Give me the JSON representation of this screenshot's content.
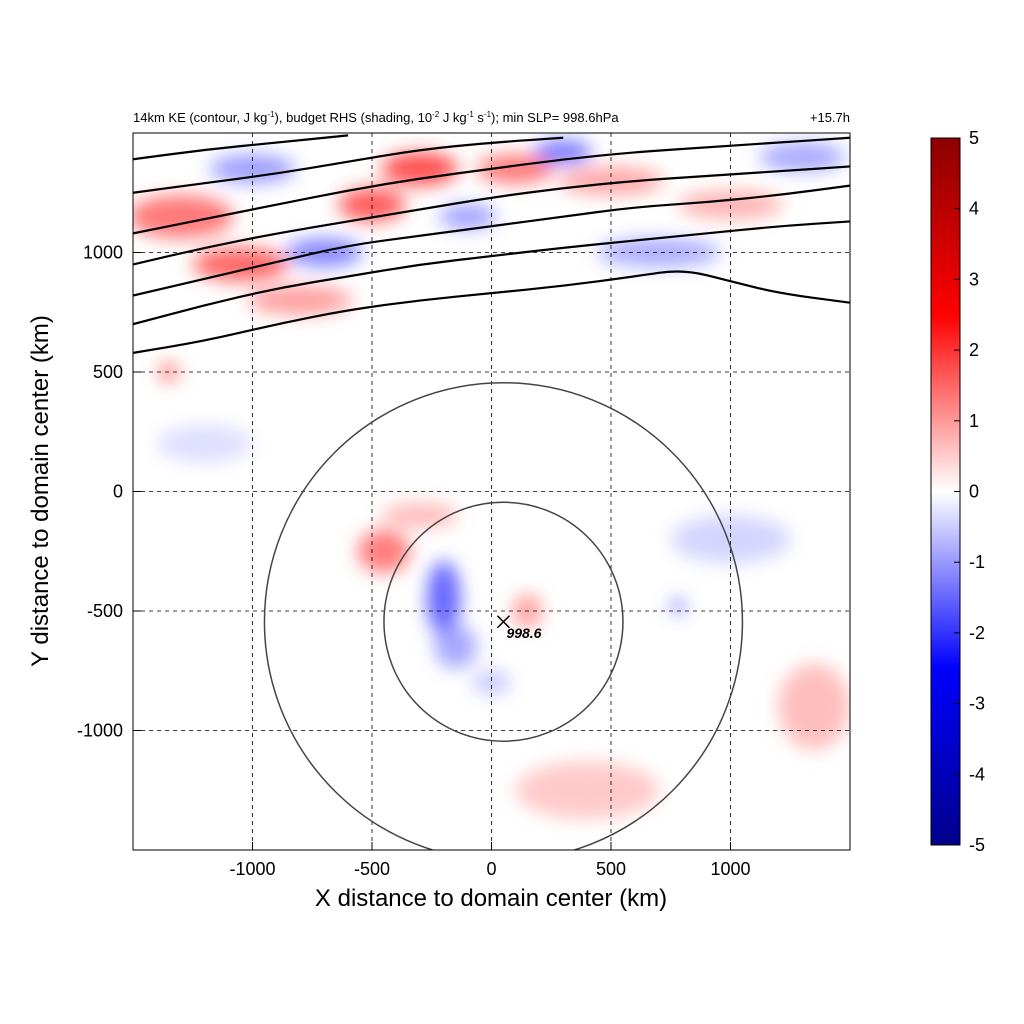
{
  "chart_data": {
    "type": "heatmap",
    "title": {
      "part1": "14km KE (contour, J kg",
      "sup1": "-1",
      "part2": "), budget RHS (shading, 10",
      "sup2": "-2",
      "part3": " J kg",
      "sup3": "-1",
      "part4": " s",
      "sup4": "-1",
      "part5": "); min SLP= 998.6hPa"
    },
    "time_label": "+15.7h",
    "xlabel": "X distance to domain center (km)",
    "ylabel": "Y distance to domain center (km)",
    "xlim": [
      -1500,
      1500
    ],
    "ylim": [
      -1500,
      1500
    ],
    "xticks": [
      -1000,
      -500,
      0,
      500,
      1000
    ],
    "yticks": [
      -1000,
      -500,
      0,
      500,
      1000
    ],
    "grid": true,
    "colorbar": {
      "range": [
        -5,
        5
      ],
      "ticks": [
        5,
        4,
        3,
        2,
        1,
        0,
        -1,
        -2,
        -3,
        -4,
        -5
      ],
      "colors": [
        "#00008b",
        "#0000ff",
        "#ffffff",
        "#ff0000",
        "#8b0000"
      ]
    },
    "storm_center": {
      "x": 50,
      "y": -545,
      "slp_label": "998.6"
    },
    "range_rings_km": [
      500,
      1000
    ],
    "ke_contours": [
      [
        [
          -1500,
          580
        ],
        [
          -1200,
          630
        ],
        [
          -900,
          700
        ],
        [
          -600,
          760
        ],
        [
          -300,
          800
        ],
        [
          0,
          830
        ],
        [
          300,
          860
        ],
        [
          600,
          900
        ],
        [
          800,
          930
        ],
        [
          1000,
          880
        ],
        [
          1200,
          830
        ],
        [
          1500,
          790
        ]
      ],
      [
        [
          -1500,
          700
        ],
        [
          -1200,
          780
        ],
        [
          -900,
          850
        ],
        [
          -600,
          900
        ],
        [
          -300,
          950
        ],
        [
          0,
          985
        ],
        [
          300,
          1020
        ],
        [
          600,
          1050
        ],
        [
          900,
          1080
        ],
        [
          1200,
          1110
        ],
        [
          1500,
          1130
        ]
      ],
      [
        [
          -1500,
          820
        ],
        [
          -1200,
          890
        ],
        [
          -900,
          960
        ],
        [
          -600,
          1030
        ],
        [
          -300,
          1070
        ],
        [
          0,
          1110
        ],
        [
          300,
          1150
        ],
        [
          600,
          1190
        ],
        [
          900,
          1210
        ],
        [
          1200,
          1240
        ],
        [
          1500,
          1280
        ]
      ],
      [
        [
          -1500,
          950
        ],
        [
          -1200,
          1020
        ],
        [
          -900,
          1080
        ],
        [
          -600,
          1130
        ],
        [
          -300,
          1180
        ],
        [
          0,
          1230
        ],
        [
          300,
          1270
        ],
        [
          600,
          1300
        ],
        [
          900,
          1320
        ],
        [
          1200,
          1340
        ],
        [
          1500,
          1360
        ]
      ],
      [
        [
          -1500,
          1080
        ],
        [
          -1200,
          1140
        ],
        [
          -900,
          1200
        ],
        [
          -600,
          1260
        ],
        [
          -300,
          1310
        ],
        [
          0,
          1350
        ],
        [
          300,
          1390
        ],
        [
          600,
          1420
        ],
        [
          900,
          1440
        ],
        [
          1200,
          1460
        ],
        [
          1500,
          1480
        ]
      ],
      [
        [
          -1500,
          1250
        ],
        [
          -1200,
          1290
        ],
        [
          -900,
          1330
        ],
        [
          -600,
          1380
        ],
        [
          -300,
          1430
        ],
        [
          0,
          1460
        ],
        [
          300,
          1480
        ]
      ],
      [
        [
          -1500,
          1390
        ],
        [
          -1200,
          1430
        ],
        [
          -900,
          1460
        ],
        [
          -600,
          1490
        ]
      ]
    ],
    "shading_blobs": [
      {
        "x": -1300,
        "y": 1150,
        "rx": 220,
        "ry": 90,
        "v": 2.5
      },
      {
        "x": -1050,
        "y": 950,
        "rx": 200,
        "ry": 70,
        "v": 2.8
      },
      {
        "x": -700,
        "y": 1000,
        "rx": 160,
        "ry": 60,
        "v": -2.2
      },
      {
        "x": -800,
        "y": 800,
        "rx": 220,
        "ry": 60,
        "v": 1.8
      },
      {
        "x": -500,
        "y": 1200,
        "rx": 140,
        "ry": 70,
        "v": 3.0
      },
      {
        "x": -300,
        "y": 1350,
        "rx": 160,
        "ry": 70,
        "v": 3.2
      },
      {
        "x": -100,
        "y": 1150,
        "rx": 120,
        "ry": 50,
        "v": -1.8
      },
      {
        "x": 100,
        "y": 1350,
        "rx": 160,
        "ry": 60,
        "v": 2.5
      },
      {
        "x": 300,
        "y": 1420,
        "rx": 120,
        "ry": 50,
        "v": -2.5
      },
      {
        "x": 500,
        "y": 1300,
        "rx": 220,
        "ry": 60,
        "v": 1.6
      },
      {
        "x": 700,
        "y": 1000,
        "rx": 260,
        "ry": 60,
        "v": -1.5
      },
      {
        "x": 1000,
        "y": 1200,
        "rx": 220,
        "ry": 60,
        "v": 1.4
      },
      {
        "x": 1300,
        "y": 1400,
        "rx": 180,
        "ry": 60,
        "v": -1.6
      },
      {
        "x": -1000,
        "y": 1350,
        "rx": 180,
        "ry": 60,
        "v": -1.8
      },
      {
        "x": -1350,
        "y": 500,
        "rx": 40,
        "ry": 40,
        "v": 2.5
      },
      {
        "x": -450,
        "y": -250,
        "rx": 110,
        "ry": 90,
        "v": 2.4
      },
      {
        "x": -300,
        "y": -100,
        "rx": 160,
        "ry": 50,
        "v": 1.3
      },
      {
        "x": -200,
        "y": -450,
        "rx": 70,
        "ry": 160,
        "v": -2.8
      },
      {
        "x": -150,
        "y": -650,
        "rx": 90,
        "ry": 90,
        "v": -1.6
      },
      {
        "x": 150,
        "y": -500,
        "rx": 60,
        "ry": 70,
        "v": 1.8
      },
      {
        "x": 0,
        "y": -800,
        "rx": 80,
        "ry": 50,
        "v": -1.0
      },
      {
        "x": 780,
        "y": -480,
        "rx": 30,
        "ry": 30,
        "v": -2.5
      },
      {
        "x": 1350,
        "y": -900,
        "rx": 150,
        "ry": 180,
        "v": 1.2
      },
      {
        "x": 400,
        "y": -1250,
        "rx": 300,
        "ry": 120,
        "v": 1.0
      },
      {
        "x": 1000,
        "y": -200,
        "rx": 250,
        "ry": 100,
        "v": -0.8
      },
      {
        "x": -1200,
        "y": 200,
        "rx": 200,
        "ry": 80,
        "v": -0.6
      }
    ]
  }
}
